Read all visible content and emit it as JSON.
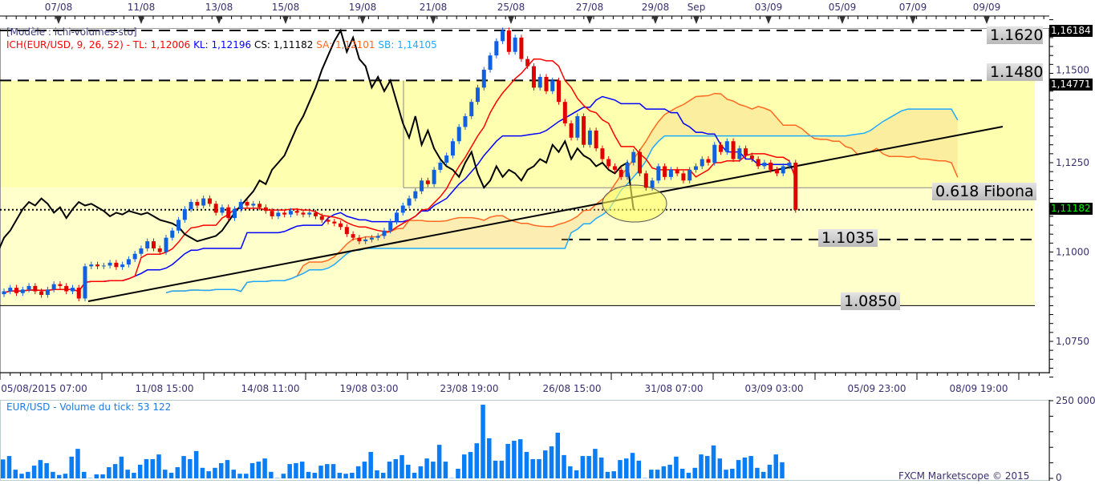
{
  "chart_data": {
    "type": "candlestick",
    "symbol": "EUR/USD",
    "template_label": "[Modèle : ichi-volumes-sto]",
    "ichimoku": {
      "label": "ICH(EUR/USD, 9, 26, 52) -",
      "params": [
        9,
        26,
        52
      ],
      "tl_label": "TL: 1,12006",
      "kl_label": "KL: 1,12196",
      "cs_label": "CS: 1,11182",
      "sa_label": "SA: 1,12101",
      "sb_label": "SB: 1,14105",
      "colors": {
        "tl": "#ff0000",
        "kl": "#0000ff",
        "cs": "#000000",
        "sa": "#ff6a22",
        "sb": "#1eaaff"
      }
    },
    "ylim": [
      1.065,
      1.17
    ],
    "y_ticks": [
      "1,1500",
      "1,1250",
      "1,1000",
      "1,0750"
    ],
    "y_tick_values": [
      1.15,
      1.125,
      1.1,
      1.075
    ],
    "price_tags": {
      "high": "1,16184",
      "resist": "1,14771",
      "last": "1,11182"
    },
    "top_dates": [
      "07/08",
      "11/08",
      "13/08",
      "15/08",
      "19/08",
      "21/08",
      "25/08",
      "27/08",
      "29/08",
      "Sep",
      "03/09",
      "05/09",
      "07/09",
      "09/09"
    ],
    "bottom_dates": [
      "05/08/2015 07:00",
      "11/08 15:00",
      "14/08 11:00",
      "19/08 03:00",
      "23/08 19:00",
      "26/08 15:00",
      "31/08 07:00",
      "03/09 03:00",
      "05/09 23:00",
      "08/09 19:00"
    ],
    "levels": [
      {
        "label": "1.1620",
        "value": 1.162
      },
      {
        "label": "1.1480",
        "value": 1.148
      },
      {
        "label": "0.618 Fibona",
        "value": 1.118
      },
      {
        "label": "1.1035",
        "value": 1.1035
      },
      {
        "label": "1.0850",
        "value": 1.085
      }
    ],
    "last_price": 1.11182,
    "closes": [
      1.089,
      1.09,
      1.0885,
      1.0895,
      1.0905,
      1.089,
      1.088,
      1.0895,
      1.091,
      1.0905,
      1.089,
      1.09,
      1.087,
      1.096,
      1.0965,
      1.096,
      1.0962,
      1.097,
      1.0958,
      1.0965,
      1.098,
      1.0995,
      1.101,
      1.103,
      1.101,
      1.1,
      1.104,
      1.106,
      1.109,
      1.112,
      1.114,
      1.113,
      1.115,
      1.1135,
      1.111,
      1.1125,
      1.1095,
      1.112,
      1.114,
      1.113,
      1.1135,
      1.1125,
      1.1115,
      1.11,
      1.111,
      1.1105,
      1.1115,
      1.111,
      1.1105,
      1.111,
      1.11,
      1.109,
      1.1085,
      1.108,
      1.107,
      1.105,
      1.104,
      1.103,
      1.1035,
      1.104,
      1.1045,
      1.106,
      1.1085,
      1.111,
      1.113,
      1.115,
      1.117,
      1.12,
      1.119,
      1.123,
      1.125,
      1.127,
      1.131,
      1.135,
      1.138,
      1.142,
      1.146,
      1.151,
      1.155,
      1.159,
      1.162,
      1.156,
      1.16,
      1.154,
      1.152,
      1.146,
      1.149,
      1.145,
      1.148,
      1.142,
      1.136,
      1.132,
      1.138,
      1.13,
      1.134,
      1.129,
      1.126,
      1.124,
      1.123,
      1.121,
      1.125,
      1.128,
      1.122,
      1.118,
      1.12,
      1.124,
      1.121,
      1.123,
      1.122,
      1.12,
      1.123,
      1.124,
      1.126,
      1.125,
      1.13,
      1.128,
      1.131,
      1.126,
      1.129,
      1.127,
      1.126,
      1.124,
      1.125,
      1.123,
      1.122,
      1.124,
      1.125,
      1.1118
    ],
    "volume": {
      "label": "EUR/USD - Volume du tick: 53 122",
      "ylim": [
        0,
        250000
      ],
      "ticks": [
        "250 000",
        "0"
      ],
      "values": [
        61000,
        72000,
        28000,
        15000,
        21000,
        41000,
        59000,
        49000,
        21000,
        11000,
        15000,
        70000,
        95000,
        21000,
        1000,
        13000,
        13000,
        36000,
        46000,
        70000,
        28000,
        18000,
        44000,
        62000,
        62000,
        77000,
        28000,
        18000,
        36000,
        72000,
        62000,
        88000,
        34000,
        23000,
        34000,
        49000,
        59000,
        28000,
        15000,
        15000,
        49000,
        54000,
        64000,
        21000,
        1000,
        15000,
        46000,
        49000,
        54000,
        21000,
        18000,
        41000,
        46000,
        46000,
        18000,
        15000,
        18000,
        39000,
        54000,
        85000,
        26000,
        18000,
        54000,
        62000,
        75000,
        44000,
        18000,
        39000,
        64000,
        54000,
        108000,
        54000,
        1000,
        31000,
        77000,
        85000,
        113000,
        237000,
        129000,
        57000,
        57000,
        111000,
        121000,
        126000,
        85000,
        62000,
        62000,
        90000,
        103000,
        147000,
        75000,
        39000,
        26000,
        72000,
        72000,
        95000,
        67000,
        21000,
        23000,
        59000,
        64000,
        82000,
        57000,
        1000,
        28000,
        28000,
        39000,
        44000,
        70000,
        31000,
        18000,
        34000,
        77000,
        72000,
        106000,
        64000,
        28000,
        31000,
        59000,
        67000,
        72000,
        34000,
        21000,
        44000,
        77000,
        52000
      ],
      "color": "#0a7df5"
    },
    "watermark": "FXCM Marketscope © 2015"
  }
}
